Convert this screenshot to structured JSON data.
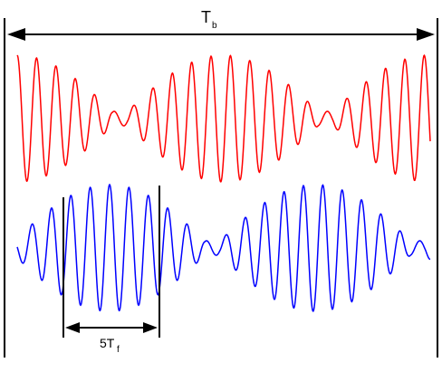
{
  "labels": {
    "tb_main": "T",
    "tb_sub": "b",
    "tf_main": "5T",
    "tf_sub": "f"
  },
  "colors": {
    "red_wave": "#ff0000",
    "blue_wave": "#0000ff",
    "lines": "#000000",
    "background": "#ffffff"
  }
}
